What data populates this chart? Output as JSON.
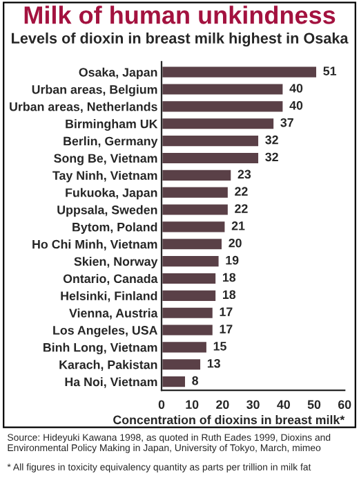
{
  "chart_data": {
    "type": "bar",
    "orientation": "horizontal",
    "title": "Milk of human unkindness",
    "subtitle": "Levels of dioxin in breast milk highest in Osaka",
    "categories": [
      "Osaka, Japan",
      "Urban areas, Belgium",
      "Urban areas, Netherlands",
      "Birmingham UK",
      "Berlin, Germany",
      "Song Be, Vietnam",
      "Tay Ninh, Vietnam",
      "Fukuoka, Japan",
      "Uppsala, Sweden",
      "Bytom, Poland",
      "Ho Chi Minh, Vietnam",
      "Skien, Norway",
      "Ontario, Canada",
      "Helsinki, Finland",
      "Vienna, Austria",
      "Los Angeles, USA",
      "Binh Long, Vietnam",
      "Karach, Pakistan",
      "Ha Noi, Vietnam"
    ],
    "values": [
      51,
      40,
      40,
      37,
      32,
      32,
      23,
      22,
      22,
      21,
      20,
      19,
      18,
      18,
      17,
      17,
      15,
      13,
      8
    ],
    "color": "#5a4047",
    "data_labels": true,
    "xlim": [
      0,
      60
    ],
    "xticks": [
      0,
      10,
      20,
      30,
      40,
      50,
      60
    ],
    "grid": false,
    "legend": false,
    "xlabel": "Concentration of dioxins in breast milk*",
    "annotations": [
      "Source: Hideyuki Kawana 1998, as quoted in Ruth Eades 1999, Dioxins and Environmental Policy Making in Japan, University of Tokyo, March, mimeo",
      "* All figures in toxicity equivalency quantity as parts per trillion in milk fat"
    ]
  }
}
